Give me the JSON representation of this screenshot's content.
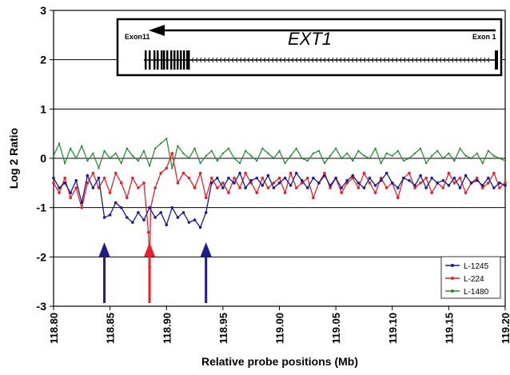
{
  "chart_data": {
    "type": "line",
    "xlabel": "Relative probe positions (Mb)",
    "ylabel": "Log 2 Ratio",
    "xlim": [
      118.8,
      119.2
    ],
    "ylim": [
      -3,
      3
    ],
    "x_ticks": [
      "118.80",
      "118.85",
      "118.90",
      "118.95",
      "119.00",
      "119.05",
      "119.10",
      "119.15",
      "119.20"
    ],
    "y_ticks": [
      "3",
      "2",
      "1",
      "0",
      "-1",
      "-2",
      "-3"
    ],
    "grid": "horizontal",
    "legend_position": "bottom-right",
    "series": [
      {
        "name": "L-1245",
        "color": "#1c1c8c",
        "x": [
          118.8,
          118.805,
          118.81,
          118.815,
          118.82,
          118.825,
          118.83,
          118.835,
          118.84,
          118.845,
          118.85,
          118.855,
          118.86,
          118.865,
          118.87,
          118.875,
          118.88,
          118.885,
          118.89,
          118.895,
          118.9,
          118.905,
          118.91,
          118.915,
          118.92,
          118.925,
          118.93,
          118.935,
          118.94,
          118.945,
          118.95,
          118.955,
          118.96,
          118.965,
          118.97,
          118.975,
          118.98,
          118.985,
          118.99,
          118.995,
          119.0,
          119.005,
          119.01,
          119.015,
          119.02,
          119.025,
          119.03,
          119.035,
          119.04,
          119.045,
          119.05,
          119.055,
          119.06,
          119.065,
          119.07,
          119.075,
          119.08,
          119.085,
          119.09,
          119.095,
          119.1,
          119.105,
          119.11,
          119.115,
          119.12,
          119.125,
          119.13,
          119.135,
          119.14,
          119.145,
          119.15,
          119.155,
          119.16,
          119.165,
          119.17,
          119.175,
          119.18,
          119.185,
          119.19,
          119.195,
          119.2
        ],
        "values": [
          -0.4,
          -0.6,
          -0.5,
          -0.7,
          -0.45,
          -0.9,
          -0.35,
          -0.6,
          -0.4,
          -1.2,
          -1.15,
          -0.9,
          -1.0,
          -1.2,
          -1.3,
          -1.1,
          -1.25,
          -1.0,
          -1.2,
          -1.1,
          -1.35,
          -1.0,
          -1.2,
          -1.1,
          -1.3,
          -1.25,
          -1.4,
          -1.1,
          -0.5,
          -0.4,
          -0.6,
          -0.4,
          -0.5,
          -0.3,
          -0.6,
          -0.45,
          -0.4,
          -0.55,
          -0.35,
          -0.6,
          -0.5,
          -0.4,
          -0.55,
          -0.3,
          -0.45,
          -0.6,
          -0.4,
          -0.5,
          -0.35,
          -0.55,
          -0.4,
          -0.6,
          -0.45,
          -0.35,
          -0.5,
          -0.6,
          -0.4,
          -0.55,
          -0.45,
          -0.3,
          -0.5,
          -0.6,
          -0.4,
          -0.45,
          -0.55,
          -0.35,
          -0.6,
          -0.4,
          -0.5,
          -0.45,
          -0.55,
          -0.4,
          -0.6,
          -0.35,
          -0.5,
          -0.45,
          -0.55,
          -0.4,
          -0.6,
          -0.5,
          -0.55
        ]
      },
      {
        "name": "L-224",
        "color": "#e8202a",
        "x": [
          118.8,
          118.805,
          118.81,
          118.815,
          118.82,
          118.825,
          118.83,
          118.835,
          118.84,
          118.845,
          118.85,
          118.855,
          118.86,
          118.865,
          118.87,
          118.875,
          118.88,
          118.884,
          118.885,
          118.886,
          118.89,
          118.895,
          118.9,
          118.905,
          118.91,
          118.915,
          118.92,
          118.925,
          118.93,
          118.935,
          118.94,
          118.945,
          118.95,
          118.955,
          118.96,
          118.965,
          118.97,
          118.975,
          118.98,
          118.985,
          118.99,
          118.995,
          119.0,
          119.005,
          119.01,
          119.015,
          119.02,
          119.025,
          119.03,
          119.035,
          119.04,
          119.045,
          119.05,
          119.055,
          119.06,
          119.065,
          119.07,
          119.075,
          119.08,
          119.085,
          119.09,
          119.095,
          119.1,
          119.105,
          119.11,
          119.115,
          119.12,
          119.125,
          119.13,
          119.135,
          119.14,
          119.145,
          119.15,
          119.155,
          119.16,
          119.165,
          119.17,
          119.175,
          119.18,
          119.185,
          119.19,
          119.195,
          119.2
        ],
        "values": [
          -0.5,
          -0.7,
          -0.4,
          -0.8,
          -0.6,
          -1.0,
          -0.5,
          -0.3,
          -0.6,
          -0.4,
          -0.7,
          -0.3,
          -0.5,
          -0.8,
          -0.4,
          -0.6,
          -0.5,
          -1.5,
          -2.2,
          -1.0,
          -0.6,
          -0.3,
          -0.2,
          0.1,
          -0.5,
          -0.3,
          -0.4,
          -0.6,
          -0.3,
          -0.8,
          -0.4,
          -0.6,
          -0.5,
          -0.7,
          -0.4,
          -0.6,
          -0.3,
          -0.5,
          -0.7,
          -0.4,
          -0.6,
          -0.5,
          -0.4,
          -0.7,
          -0.3,
          -0.6,
          -0.5,
          -0.4,
          -0.8,
          -0.5,
          -0.3,
          -0.6,
          -0.4,
          -0.7,
          -0.5,
          -0.4,
          -0.6,
          -0.3,
          -0.5,
          -0.7,
          -0.4,
          -0.6,
          -0.5,
          -0.8,
          -0.4,
          -0.3,
          -0.6,
          -0.5,
          -0.4,
          -0.7,
          -0.5,
          -0.6,
          -0.3,
          -0.5,
          -0.4,
          -0.7,
          -0.5,
          -0.4,
          -0.6,
          -0.5,
          -0.3,
          -0.6,
          -0.5
        ]
      },
      {
        "name": "L-1480",
        "color": "#2e8b3a",
        "x": [
          118.8,
          118.805,
          118.81,
          118.815,
          118.82,
          118.825,
          118.83,
          118.835,
          118.84,
          118.845,
          118.85,
          118.855,
          118.86,
          118.865,
          118.87,
          118.875,
          118.88,
          118.885,
          118.89,
          118.895,
          118.9,
          118.905,
          118.91,
          118.915,
          118.92,
          118.925,
          118.93,
          118.935,
          118.94,
          118.945,
          118.95,
          118.955,
          118.96,
          118.965,
          118.97,
          118.975,
          118.98,
          118.985,
          118.99,
          118.995,
          119.0,
          119.005,
          119.01,
          119.015,
          119.02,
          119.025,
          119.03,
          119.035,
          119.04,
          119.045,
          119.05,
          119.055,
          119.06,
          119.065,
          119.07,
          119.075,
          119.08,
          119.085,
          119.09,
          119.095,
          119.1,
          119.105,
          119.11,
          119.115,
          119.12,
          119.125,
          119.13,
          119.135,
          119.14,
          119.145,
          119.15,
          119.155,
          119.16,
          119.165,
          119.17,
          119.175,
          119.18,
          119.185,
          119.19,
          119.195,
          119.2
        ],
        "values": [
          0.05,
          0.3,
          -0.1,
          0.2,
          0.0,
          0.25,
          -0.05,
          0.1,
          -0.2,
          0.15,
          0.0,
          0.1,
          -0.1,
          0.2,
          0.05,
          -0.05,
          0.15,
          -0.15,
          0.2,
          0.3,
          0.4,
          -0.2,
          0.25,
          0.1,
          0.0,
          0.2,
          -0.1,
          0.05,
          0.15,
          -0.05,
          0.1,
          0.2,
          0.0,
          -0.1,
          0.15,
          0.05,
          -0.05,
          0.2,
          0.1,
          0.0,
          0.15,
          -0.1,
          0.05,
          0.2,
          0.0,
          -0.05,
          0.1,
          0.15,
          -0.1,
          0.05,
          0.2,
          0.0,
          0.1,
          -0.05,
          0.15,
          0.05,
          0.0,
          0.2,
          -0.1,
          0.1,
          0.05,
          0.15,
          -0.05,
          0.0,
          0.1,
          0.2,
          -0.1,
          0.05,
          0.15,
          0.0,
          0.1,
          -0.05,
          0.2,
          0.05,
          0.0,
          0.1,
          -0.1,
          0.15,
          0.05,
          0.0,
          -0.05
        ]
      }
    ],
    "inset": {
      "gene_name": "EXT1",
      "left_label": "Exon11",
      "right_label": "Exon 1",
      "direction": "right-to-left"
    },
    "annotations": [
      {
        "type": "arrow",
        "color": "#1c1c8c",
        "x": 118.845
      },
      {
        "type": "arrow",
        "color": "#e8202a",
        "x": 118.885
      },
      {
        "type": "arrow",
        "color": "#1c1c8c",
        "x": 118.935
      }
    ]
  }
}
